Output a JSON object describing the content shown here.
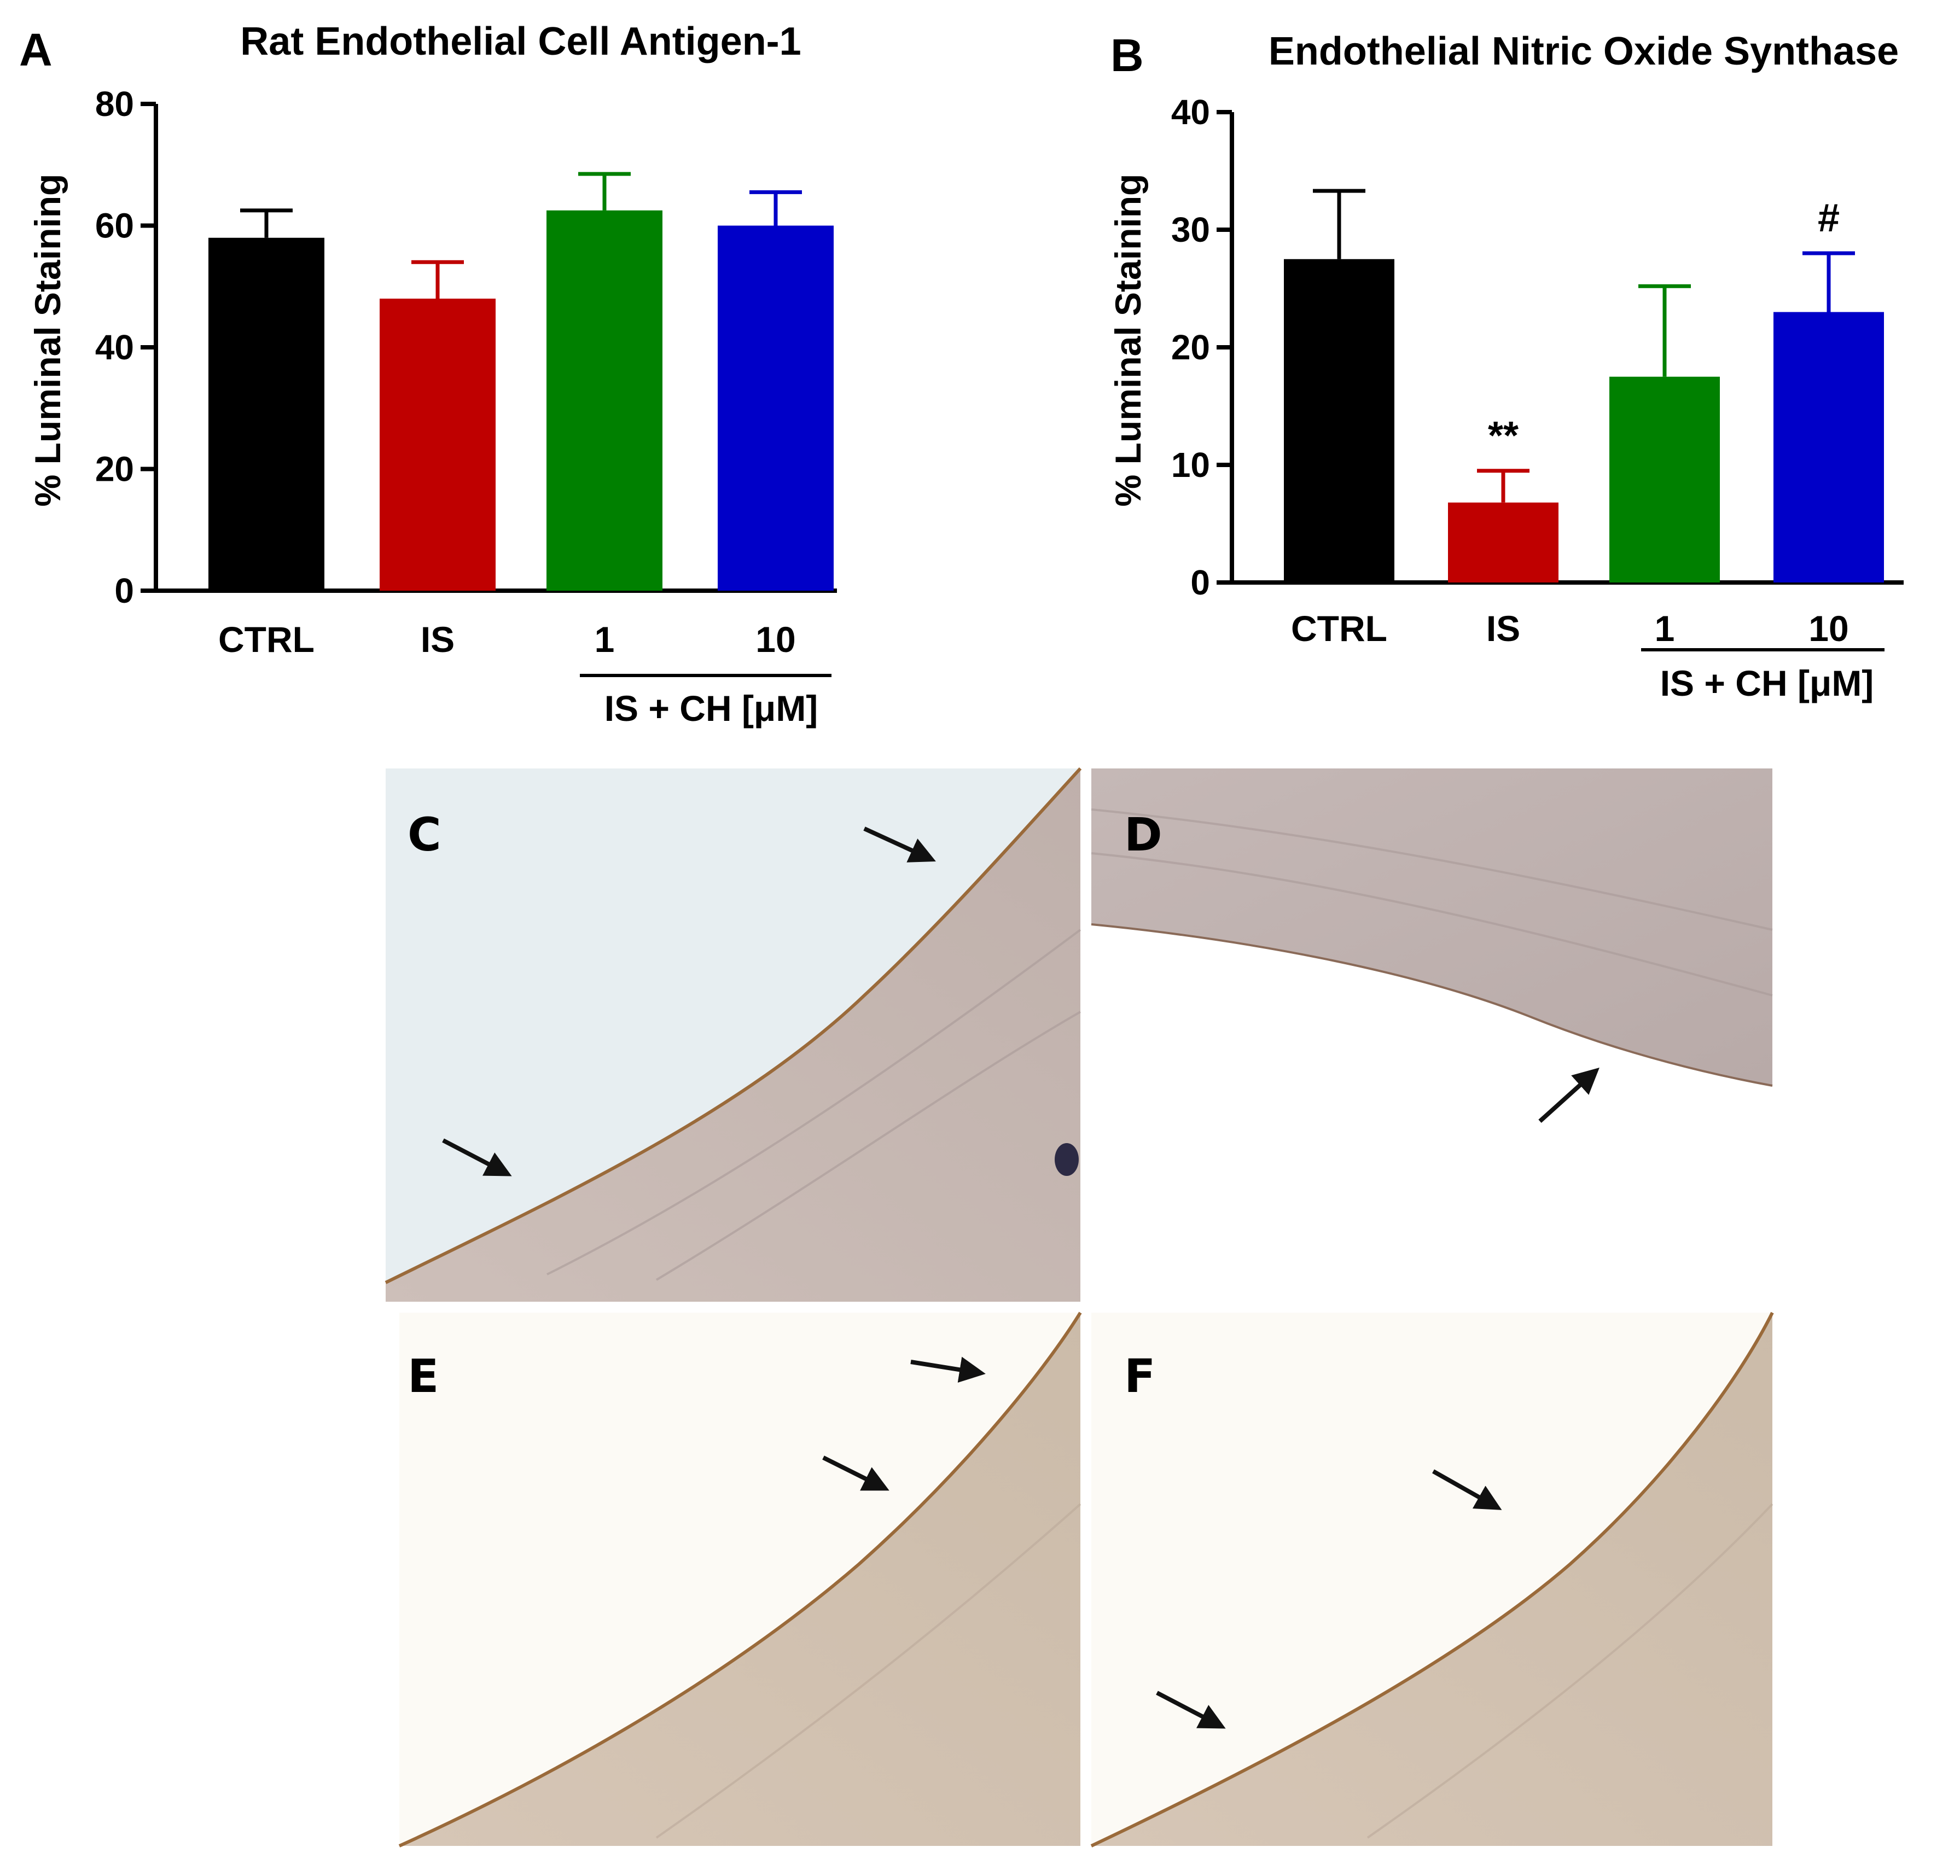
{
  "panels": {
    "a": "A",
    "b": "B",
    "c": "C",
    "d": "D",
    "e": "E",
    "f": "F"
  },
  "chart_data": [
    {
      "type": "bar",
      "title": "Rat Endothelial Cell Antigen-1",
      "ylabel": "% Luminal Staining",
      "xlabel": "",
      "ylim": [
        0,
        80
      ],
      "yticks": [
        "0",
        "20",
        "40",
        "60",
        "80"
      ],
      "categories": [
        "CTRL",
        "IS",
        "1",
        "10"
      ],
      "group_label": "IS + CH [μM]",
      "values": [
        58,
        48,
        62.5,
        60
      ],
      "errors": [
        4.5,
        6,
        6,
        5.5
      ],
      "colors": [
        "#000000",
        "#bf0000",
        "#008000",
        "#0000c8"
      ],
      "annotations": [
        "",
        "",
        "",
        ""
      ],
      "grid": false
    },
    {
      "type": "bar",
      "title": "Endothelial Nitric Oxide Synthase",
      "ylabel": "% Luminal  Staining",
      "xlabel": "",
      "ylim": [
        0,
        40
      ],
      "yticks": [
        "0",
        "10",
        "20",
        "30",
        "40"
      ],
      "categories": [
        "CTRL",
        "IS",
        "1",
        "10"
      ],
      "group_label": "IS + CH [μM]",
      "values": [
        27.5,
        6.8,
        17.5,
        23
      ],
      "errors": [
        5.8,
        2.7,
        7.7,
        5
      ],
      "colors": [
        "#000000",
        "#bf0000",
        "#008000",
        "#0000c8"
      ],
      "annotations": [
        "",
        "**",
        "",
        "#"
      ],
      "grid": false
    }
  ]
}
